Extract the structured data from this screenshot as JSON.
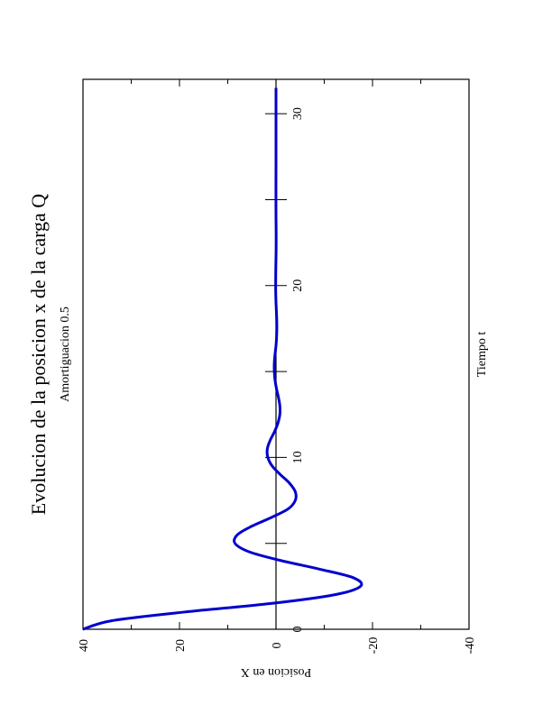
{
  "chart_data": {
    "type": "line",
    "title": "Evolucion de la posicion x de la carga Q",
    "subtitle": "Amortiguacion 0.5",
    "xlabel": "Tiempo t",
    "ylabel": "Posicion en X",
    "xlim": [
      0,
      32
    ],
    "ylim": [
      -40,
      40
    ],
    "xticks_labeled": [
      0,
      10,
      20,
      30
    ],
    "xticks_minor": [
      5,
      15,
      25
    ],
    "yticks": [
      40,
      20,
      0,
      -20,
      -40
    ],
    "ytick_labels": [
      "40",
      "20",
      "0",
      "-20",
      "-40"
    ],
    "grid": false,
    "zero_line": true,
    "rotation": "page rotated 90 degrees counter-clockwise",
    "series": [
      {
        "color": "#0000cc",
        "x": [
          0,
          0.5,
          1,
          1.5,
          2,
          2.5,
          3,
          3.5,
          4,
          4.5,
          5,
          5.5,
          6,
          6.5,
          7,
          7.5,
          8,
          8.5,
          9,
          9.5,
          10,
          10.5,
          11,
          11.5,
          12,
          12.5,
          13,
          13.5,
          14,
          14.5,
          15,
          15.5,
          16,
          16.5,
          17,
          17.5,
          18,
          18.5,
          19,
          19.5,
          20,
          21,
          22,
          23,
          24,
          25,
          26,
          27,
          28,
          29,
          30,
          31,
          31.5
        ],
        "y": [
          40,
          34,
          19,
          1,
          -12,
          -17.5,
          -16,
          -9,
          -1,
          5.5,
          8.5,
          8,
          5,
          1,
          -2.5,
          -4,
          -4,
          -2.8,
          -0.9,
          0.8,
          1.7,
          1.8,
          1.2,
          0.3,
          -0.4,
          -0.8,
          -0.8,
          -0.5,
          -0.1,
          0.2,
          0.35,
          0.35,
          0.2,
          0,
          -0.12,
          -0.17,
          -0.15,
          -0.08,
          0,
          0.05,
          0.07,
          0.04,
          -0.02,
          -0.03,
          0,
          0.01,
          0.01,
          0,
          0,
          0,
          0,
          0,
          0
        ]
      }
    ]
  }
}
